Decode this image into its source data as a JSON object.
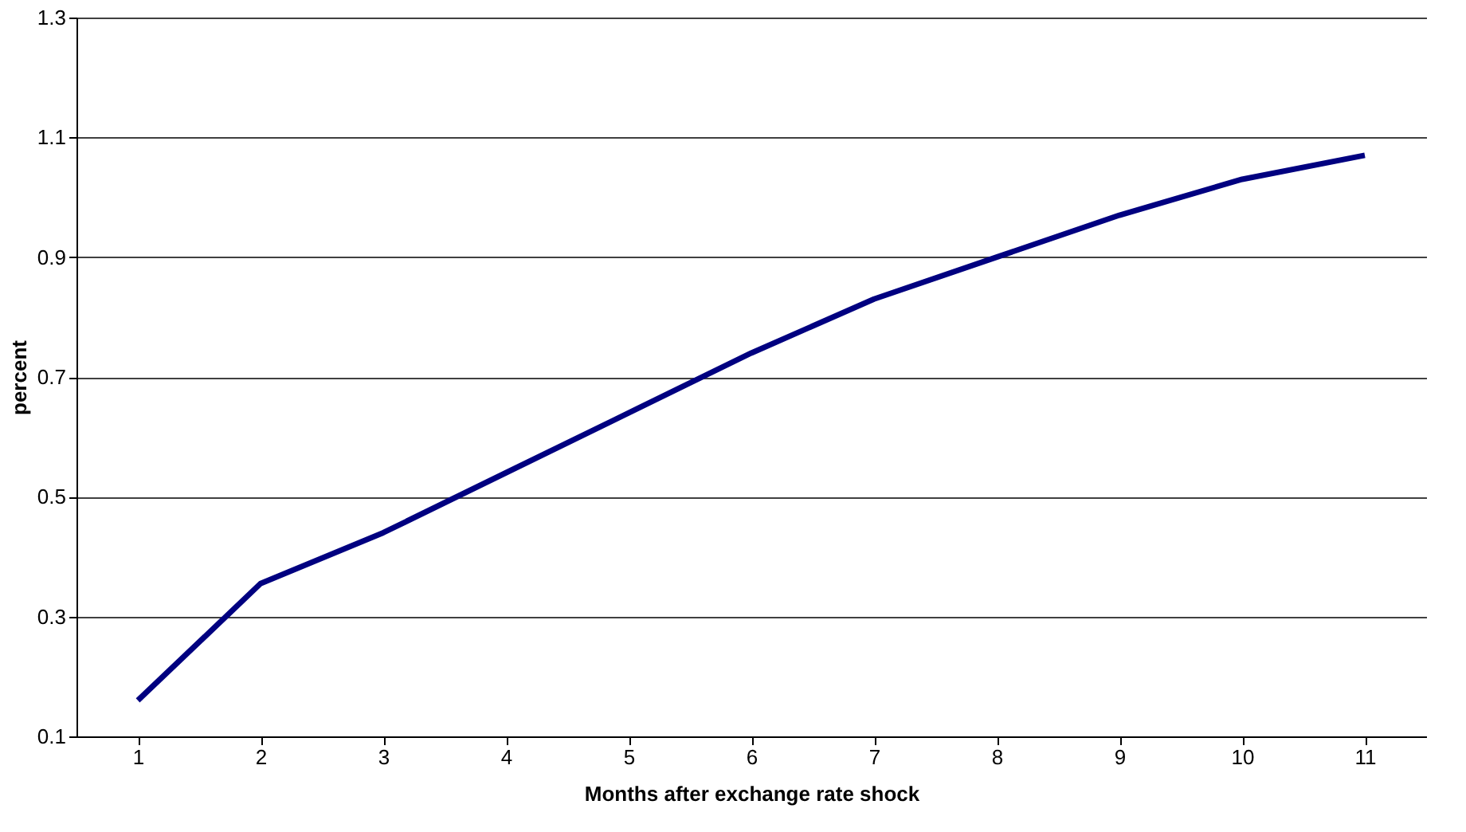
{
  "chart_data": {
    "type": "line",
    "xlabel": "Months after exchange rate shock",
    "ylabel": "percent",
    "categories": [
      "1",
      "2",
      "3",
      "4",
      "5",
      "6",
      "7",
      "8",
      "9",
      "10",
      "11"
    ],
    "series": [
      {
        "color": "#000080",
        "values": [
          0.16,
          0.355,
          0.44,
          0.54,
          0.64,
          0.74,
          0.83,
          0.9,
          0.97,
          1.03,
          1.07
        ]
      }
    ],
    "ylim": [
      0.1,
      1.3
    ],
    "yticks": [
      0.1,
      0.3,
      0.5,
      0.7,
      0.9,
      1.1,
      1.3
    ],
    "grid": "y",
    "marker": "none",
    "line_style": "solid",
    "legend": false
  }
}
